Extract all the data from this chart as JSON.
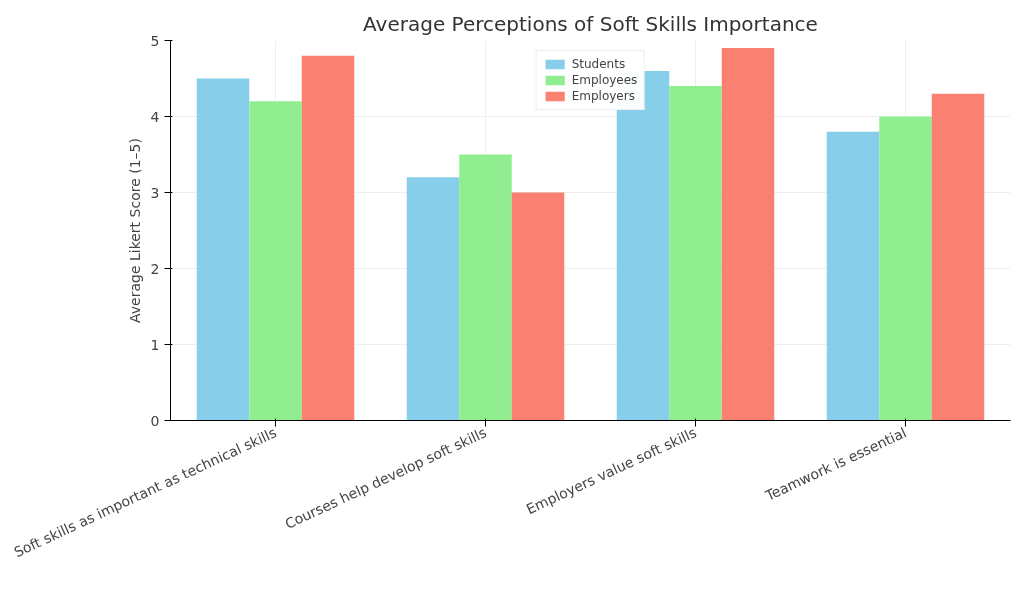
{
  "chart_data": {
    "type": "bar",
    "title": "Average Perceptions of Soft Skills Importance",
    "ylabel": "Average Likert Score (1–5)",
    "categories": [
      "Soft skills as important as technical skills",
      "Courses help develop soft skills",
      "Employers value soft skills",
      "Teamwork is essential"
    ],
    "series": [
      {
        "name": "Students",
        "color": "#87ceeb",
        "values": [
          4.5,
          3.2,
          4.6,
          3.8
        ]
      },
      {
        "name": "Employees",
        "color": "#90ee90",
        "values": [
          4.2,
          3.5,
          4.4,
          4.0
        ]
      },
      {
        "name": "Employers",
        "color": "#fa8072",
        "values": [
          4.8,
          3.0,
          4.9,
          4.3
        ]
      }
    ],
    "ylim": [
      0,
      5
    ],
    "yticks": [
      0,
      1,
      2,
      3,
      4,
      5
    ],
    "grid": true,
    "legend": "top"
  }
}
